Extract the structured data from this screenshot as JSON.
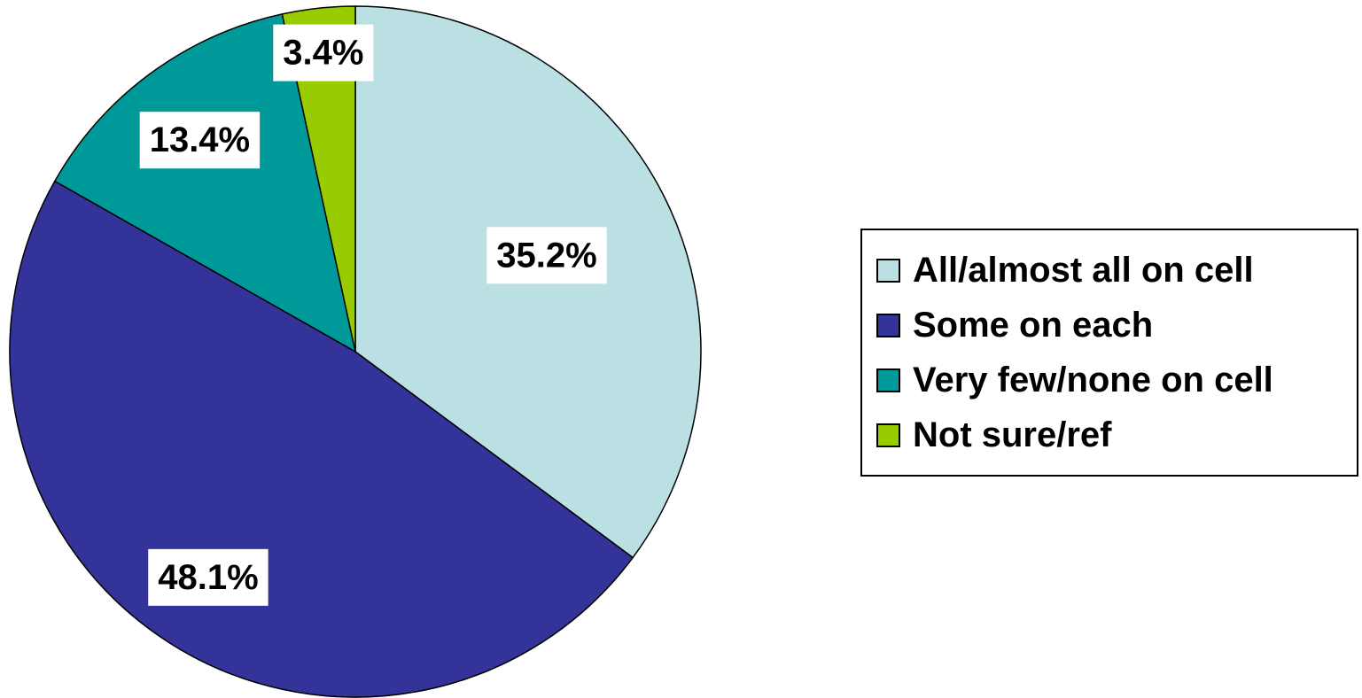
{
  "chart_data": {
    "type": "pie",
    "categories": [
      "All/almost all on cell",
      "Some on each",
      "Very few/none on cell",
      "Not sure/ref"
    ],
    "values": [
      35.2,
      48.1,
      13.4,
      3.4
    ],
    "labels": [
      "35.2%",
      "48.1%",
      "13.4%",
      "3.4%"
    ],
    "colors": [
      "#bbe0e3",
      "#333399",
      "#009999",
      "#99cc00"
    ],
    "start_angle": "12 o'clock",
    "direction": "clockwise",
    "legend_position": "right"
  }
}
